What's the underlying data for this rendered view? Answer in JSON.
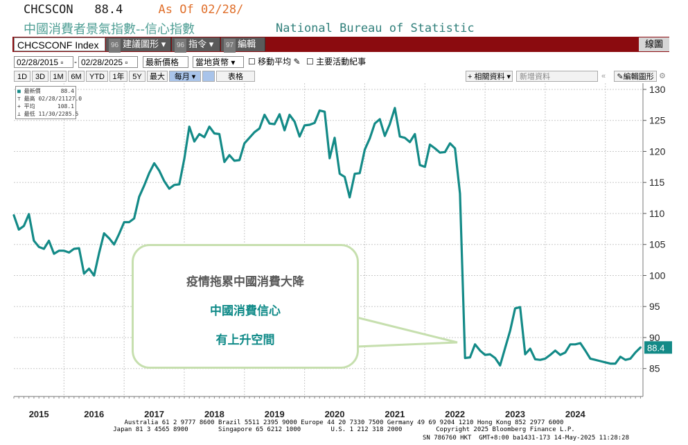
{
  "header": {
    "ticker": "CHCSCON",
    "last_value": "88.4",
    "asof_label": "As Of",
    "asof_date": "02/28/",
    "title_cn": "中國消費者景氣指數--信心指數",
    "source": "National Bureau of Statistic"
  },
  "toolbar": {
    "security": "CHCSCONF Index",
    "buttons": [
      {
        "num": "96",
        "label": "建議圖形"
      },
      {
        "num": "96",
        "label": "指令"
      },
      {
        "num": "97",
        "label": "編輯"
      }
    ],
    "right_label": "線圖",
    "date_from": "02/28/2015",
    "date_to": "02/28/2025",
    "price_field": "最新價格",
    "currency": "當地貨幣",
    "moving_avg": "移動平均",
    "events": "主要活動紀事",
    "periods": [
      "1D",
      "3D",
      "1M",
      "6M",
      "YTD",
      "1年",
      "5Y",
      "最大"
    ],
    "freq": "每月",
    "table_btn": "表格",
    "related": "相關資料",
    "new_data": "新增資料",
    "edit_chart": "編輯圖形"
  },
  "legend": {
    "rows": [
      {
        "label": "最新價",
        "value": "88.4"
      },
      {
        "label": "最高 02/28/21",
        "value": "127.0"
      },
      {
        "label": "平均",
        "value": "108.1"
      },
      {
        "label": "最低 11/30/22",
        "value": "85.5"
      }
    ]
  },
  "callout": {
    "line1": "疫情拖累中國消費大降",
    "line2": "中國消費信心",
    "line3": "有上升空間"
  },
  "footer": {
    "line1": "Australia 61 2 9777 8600 Brazil 5511 2395 9000 Europe 44 20 7330 7500 Germany 49 69 9204 1210 Hong Kong 852 2977 6000",
    "line2": "Japan 81 3 4565 8900        Singapore 65 6212 1000        U.S. 1 212 318 2000         Copyright 2025 Bloomberg Finance L.P.",
    "line3": "SN 786760 HKT  GMT+8:00 ba1431-173 14-May-2025 11:28:28"
  },
  "colors": {
    "line": "#138a87",
    "accent": "#8b0b0f",
    "callout_border": "#c6dfae",
    "callout_text2": "#0f8a88"
  },
  "chart_data": {
    "type": "line",
    "x_labels": [
      "2015",
      "2016",
      "2017",
      "2018",
      "2019",
      "2020",
      "2021",
      "2022",
      "2023",
      "2024"
    ],
    "yticks": [
      85,
      90,
      95,
      100,
      105,
      110,
      115,
      120,
      125,
      130
    ],
    "ylim": [
      80.5,
      131
    ],
    "last_label": "88.4",
    "series": [
      {
        "values": [
          109.7,
          107.4,
          108.0,
          109.9,
          105.6,
          104.6,
          104.3,
          105.6,
          103.5,
          104.0,
          104.0,
          103.7,
          104.3,
          104.4,
          100.3,
          101.1,
          100.0,
          103.6,
          106.8,
          106.0,
          105.0,
          106.7,
          108.6,
          108.6,
          109.2,
          112.7,
          114.5,
          116.5,
          118.1,
          116.9,
          115.2,
          114.0,
          114.6,
          114.7,
          118.8,
          124.0,
          121.6,
          122.8,
          122.3,
          124.0,
          122.9,
          122.8,
          118.3,
          119.4,
          118.5,
          118.6,
          121.3,
          122.2,
          123.1,
          123.7,
          125.9,
          124.5,
          124.4,
          126.0,
          123.4,
          125.9,
          124.8,
          122.4,
          124.2,
          124.3,
          124.6,
          126.6,
          126.4,
          118.9,
          122.2,
          116.4,
          115.9,
          112.6,
          116.4,
          116.5,
          120.3,
          122.1,
          124.5,
          125.2,
          122.5,
          124.4,
          127.0,
          122.4,
          122.2,
          121.5,
          122.8,
          117.8,
          117.5,
          121.1,
          120.5,
          119.8,
          119.9,
          121.3,
          120.5,
          113.2,
          86.7,
          86.8,
          88.9,
          87.9,
          87.2,
          87.3,
          86.7,
          85.5,
          88.3,
          91.1,
          94.7,
          94.9,
          87.3,
          88.2,
          86.5,
          86.4,
          86.6,
          87.2,
          87.9,
          87.2,
          87.6,
          88.9,
          88.9,
          89.1,
          87.9,
          86.6,
          86.4,
          86.2,
          86.0,
          85.8,
          85.8,
          86.9,
          86.4,
          86.6,
          87.6,
          88.4
        ]
      }
    ]
  }
}
